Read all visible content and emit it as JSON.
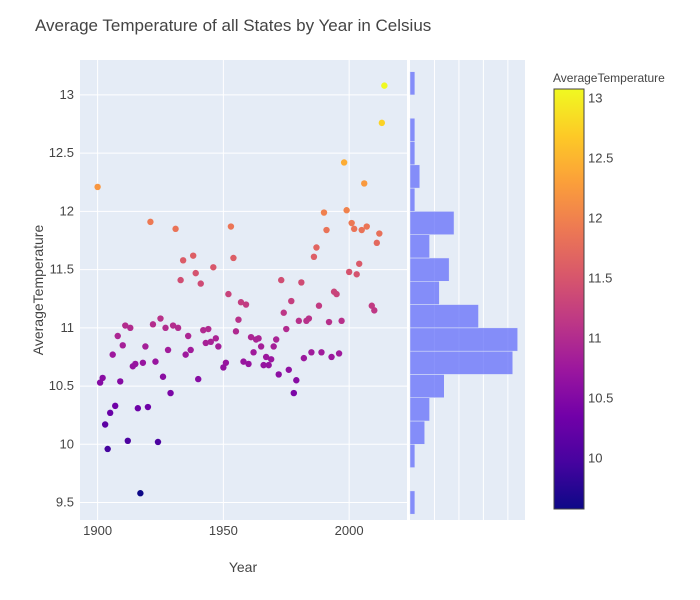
{
  "chart_data": {
    "type": "scatter",
    "title": "Average Temperature of all States by Year in Celsius",
    "xlabel": "Year",
    "ylabel": "AverageTemperature",
    "xlim": [
      1893,
      2023
    ],
    "ylim": [
      9.35,
      13.3
    ],
    "x_ticks": [
      1900,
      1950,
      2000
    ],
    "y_ticks": [
      9.5,
      10,
      10.5,
      11,
      11.5,
      12,
      12.5,
      13
    ],
    "grid": true,
    "points": [
      {
        "x": 1900,
        "y": 12.21
      },
      {
        "x": 1901,
        "y": 10.53
      },
      {
        "x": 1902,
        "y": 10.57
      },
      {
        "x": 1903,
        "y": 10.17
      },
      {
        "x": 1904,
        "y": 9.96
      },
      {
        "x": 1905,
        "y": 10.27
      },
      {
        "x": 1906,
        "y": 10.77
      },
      {
        "x": 1907,
        "y": 10.33
      },
      {
        "x": 1908,
        "y": 10.93
      },
      {
        "x": 1909,
        "y": 10.54
      },
      {
        "x": 1910,
        "y": 10.85
      },
      {
        "x": 1911,
        "y": 11.02
      },
      {
        "x": 1912,
        "y": 10.03
      },
      {
        "x": 1913,
        "y": 11.0
      },
      {
        "x": 1914,
        "y": 10.67
      },
      {
        "x": 1915,
        "y": 10.69
      },
      {
        "x": 1916,
        "y": 10.31
      },
      {
        "x": 1917,
        "y": 9.58
      },
      {
        "x": 1918,
        "y": 10.7
      },
      {
        "x": 1919,
        "y": 10.84
      },
      {
        "x": 1920,
        "y": 10.32
      },
      {
        "x": 1921,
        "y": 11.91
      },
      {
        "x": 1922,
        "y": 11.03
      },
      {
        "x": 1923,
        "y": 10.71
      },
      {
        "x": 1924,
        "y": 10.02
      },
      {
        "x": 1925,
        "y": 11.08
      },
      {
        "x": 1926,
        "y": 10.58
      },
      {
        "x": 1927,
        "y": 11.0
      },
      {
        "x": 1928,
        "y": 10.81
      },
      {
        "x": 1929,
        "y": 10.44
      },
      {
        "x": 1930,
        "y": 11.02
      },
      {
        "x": 1931,
        "y": 11.85
      },
      {
        "x": 1932,
        "y": 11.0
      },
      {
        "x": 1933,
        "y": 11.41
      },
      {
        "x": 1934,
        "y": 11.58
      },
      {
        "x": 1935,
        "y": 10.77
      },
      {
        "x": 1936,
        "y": 10.93
      },
      {
        "x": 1937,
        "y": 10.81
      },
      {
        "x": 1938,
        "y": 11.62
      },
      {
        "x": 1939,
        "y": 11.47
      },
      {
        "x": 1940,
        "y": 10.56
      },
      {
        "x": 1941,
        "y": 11.38
      },
      {
        "x": 1942,
        "y": 10.98
      },
      {
        "x": 1943,
        "y": 10.87
      },
      {
        "x": 1944,
        "y": 10.99
      },
      {
        "x": 1945,
        "y": 10.88
      },
      {
        "x": 1946,
        "y": 11.52
      },
      {
        "x": 1947,
        "y": 10.91
      },
      {
        "x": 1948,
        "y": 10.84
      },
      {
        "x": 1950,
        "y": 10.66
      },
      {
        "x": 1951,
        "y": 10.7
      },
      {
        "x": 1952,
        "y": 11.29
      },
      {
        "x": 1953,
        "y": 11.87
      },
      {
        "x": 1954,
        "y": 11.6
      },
      {
        "x": 1955,
        "y": 10.97
      },
      {
        "x": 1956,
        "y": 11.07
      },
      {
        "x": 1957,
        "y": 11.22
      },
      {
        "x": 1958,
        "y": 10.71
      },
      {
        "x": 1959,
        "y": 11.2
      },
      {
        "x": 1960,
        "y": 10.69
      },
      {
        "x": 1961,
        "y": 10.92
      },
      {
        "x": 1962,
        "y": 10.79
      },
      {
        "x": 1963,
        "y": 10.9
      },
      {
        "x": 1964,
        "y": 10.91
      },
      {
        "x": 1965,
        "y": 10.84
      },
      {
        "x": 1966,
        "y": 10.68
      },
      {
        "x": 1967,
        "y": 10.75
      },
      {
        "x": 1968,
        "y": 10.68
      },
      {
        "x": 1969,
        "y": 10.73
      },
      {
        "x": 1970,
        "y": 10.84
      },
      {
        "x": 1971,
        "y": 10.9
      },
      {
        "x": 1972,
        "y": 10.6
      },
      {
        "x": 1973,
        "y": 11.41
      },
      {
        "x": 1974,
        "y": 11.13
      },
      {
        "x": 1975,
        "y": 10.99
      },
      {
        "x": 1976,
        "y": 10.64
      },
      {
        "x": 1977,
        "y": 11.23
      },
      {
        "x": 1978,
        "y": 10.44
      },
      {
        "x": 1979,
        "y": 10.55
      },
      {
        "x": 1980,
        "y": 11.06
      },
      {
        "x": 1981,
        "y": 11.39
      },
      {
        "x": 1982,
        "y": 10.74
      },
      {
        "x": 1983,
        "y": 11.06
      },
      {
        "x": 1984,
        "y": 11.08
      },
      {
        "x": 1985,
        "y": 10.79
      },
      {
        "x": 1986,
        "y": 11.61
      },
      {
        "x": 1987,
        "y": 11.69
      },
      {
        "x": 1988,
        "y": 11.19
      },
      {
        "x": 1989,
        "y": 10.79
      },
      {
        "x": 1990,
        "y": 11.99
      },
      {
        "x": 1991,
        "y": 11.84
      },
      {
        "x": 1992,
        "y": 11.05
      },
      {
        "x": 1993,
        "y": 10.75
      },
      {
        "x": 1994,
        "y": 11.31
      },
      {
        "x": 1995,
        "y": 11.29
      },
      {
        "x": 1996,
        "y": 10.78
      },
      {
        "x": 1997,
        "y": 11.06
      },
      {
        "x": 1998,
        "y": 12.42
      },
      {
        "x": 1999,
        "y": 12.01
      },
      {
        "x": 2000,
        "y": 11.48
      },
      {
        "x": 2001,
        "y": 11.9
      },
      {
        "x": 2002,
        "y": 11.85
      },
      {
        "x": 2003,
        "y": 11.46
      },
      {
        "x": 2004,
        "y": 11.55
      },
      {
        "x": 2005,
        "y": 11.84
      },
      {
        "x": 2006,
        "y": 12.24
      },
      {
        "x": 2007,
        "y": 11.87
      },
      {
        "x": 2009,
        "y": 11.19
      },
      {
        "x": 2010,
        "y": 11.15
      },
      {
        "x": 2011,
        "y": 11.73
      },
      {
        "x": 2012,
        "y": 11.81
      },
      {
        "x": 2013,
        "y": 12.76
      },
      {
        "x": 2014,
        "y": 13.08
      }
    ],
    "marginal_histogram": {
      "orientation": "horizontal",
      "bin_size": 0.2,
      "bins": [
        {
          "y0": 9.4,
          "y1": 9.6,
          "count": 1
        },
        {
          "y0": 9.6,
          "y1": 9.8,
          "count": 0
        },
        {
          "y0": 9.8,
          "y1": 10.0,
          "count": 1
        },
        {
          "y0": 10.0,
          "y1": 10.2,
          "count": 3
        },
        {
          "y0": 10.2,
          "y1": 10.4,
          "count": 4
        },
        {
          "y0": 10.4,
          "y1": 10.6,
          "count": 7
        },
        {
          "y0": 10.6,
          "y1": 10.8,
          "count": 21
        },
        {
          "y0": 10.8,
          "y1": 11.0,
          "count": 22
        },
        {
          "y0": 11.0,
          "y1": 11.2,
          "count": 14
        },
        {
          "y0": 11.2,
          "y1": 11.4,
          "count": 6
        },
        {
          "y0": 11.4,
          "y1": 11.6,
          "count": 8
        },
        {
          "y0": 11.6,
          "y1": 11.8,
          "count": 4
        },
        {
          "y0": 11.8,
          "y1": 12.0,
          "count": 9
        },
        {
          "y0": 12.0,
          "y1": 12.2,
          "count": 1
        },
        {
          "y0": 12.2,
          "y1": 12.4,
          "count": 2
        },
        {
          "y0": 12.4,
          "y1": 12.6,
          "count": 1
        },
        {
          "y0": 12.6,
          "y1": 12.8,
          "count": 1
        },
        {
          "y0": 12.8,
          "y1": 13.0,
          "count": 0
        },
        {
          "y0": 13.0,
          "y1": 13.2,
          "count": 1
        }
      ],
      "max_count": 22,
      "bar_color": "#636efa",
      "bar_opacity": 0.75
    },
    "colorbar": {
      "title": "AverageTemperature",
      "range": [
        9.58,
        13.08
      ],
      "ticks": [
        10,
        10.5,
        11,
        11.5,
        12,
        12.5,
        13
      ],
      "colorscale": [
        "#0d0887",
        "#46039f",
        "#7201a8",
        "#9c179e",
        "#bd3786",
        "#d8576b",
        "#ed7953",
        "#fb9f3a",
        "#fdca26",
        "#f0f921"
      ]
    },
    "plot_background": "#e5ecf6",
    "grid_color": "#ffffff"
  }
}
